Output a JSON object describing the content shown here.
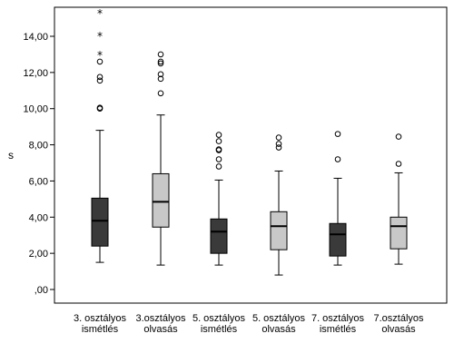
{
  "chart_data": {
    "type": "boxplot",
    "ylabel": "s",
    "ylim": [
      -0.3,
      15.5
    ],
    "yticks": [
      0,
      2,
      4,
      6,
      8,
      10,
      12,
      14
    ],
    "ytick_labels": [
      ",00",
      "2,00",
      "4,00",
      "6,00",
      "8,00",
      "10,00",
      "12,00",
      "14,00"
    ],
    "grid": false,
    "categories": [
      {
        "line1": "3. osztályos",
        "line2": "ismétlés"
      },
      {
        "line1": "3.osztályos",
        "line2": "olvasás"
      },
      {
        "line1": "5. osztályos",
        "line2": "ismétlés"
      },
      {
        "line1": "5. osztályos",
        "line2": "olvasás"
      },
      {
        "line1": "7. osztályos",
        "line2": "ismétlés"
      },
      {
        "line1": "7.osztályos",
        "line2": "olvasás"
      }
    ],
    "boxes": [
      {
        "min": 1.5,
        "q1": 2.4,
        "median": 3.8,
        "q3": 5.05,
        "max": 8.8,
        "outliers": [
          10.0,
          10.05,
          11.55,
          11.75,
          12.6
        ],
        "extremes": [
          13.0,
          14.05,
          15.3
        ],
        "fill": "#3a3a3a"
      },
      {
        "min": 1.35,
        "q1": 3.45,
        "median": 4.85,
        "q3": 6.4,
        "max": 9.65,
        "outliers": [
          10.85,
          11.65,
          11.9,
          12.5,
          12.6,
          13.0
        ],
        "extremes": [],
        "fill": "#c8c8c8"
      },
      {
        "min": 1.35,
        "q1": 2.0,
        "median": 3.2,
        "q3": 3.9,
        "max": 6.05,
        "outliers": [
          6.8,
          7.2,
          7.7,
          7.75,
          8.2,
          8.55
        ],
        "extremes": [],
        "fill": "#3a3a3a"
      },
      {
        "min": 0.8,
        "q1": 2.2,
        "median": 3.5,
        "q3": 4.3,
        "max": 6.55,
        "outliers": [
          7.85,
          8.05,
          8.4
        ],
        "extremes": [],
        "fill": "#c8c8c8"
      },
      {
        "min": 1.35,
        "q1": 1.85,
        "median": 3.05,
        "q3": 3.65,
        "max": 6.15,
        "outliers": [
          7.2,
          8.6
        ],
        "extremes": [],
        "fill": "#3a3a3a"
      },
      {
        "min": 1.4,
        "q1": 2.25,
        "median": 3.5,
        "q3": 4.0,
        "max": 6.45,
        "outliers": [
          6.95,
          8.45
        ],
        "extremes": [],
        "fill": "#c8c8c8"
      }
    ]
  }
}
